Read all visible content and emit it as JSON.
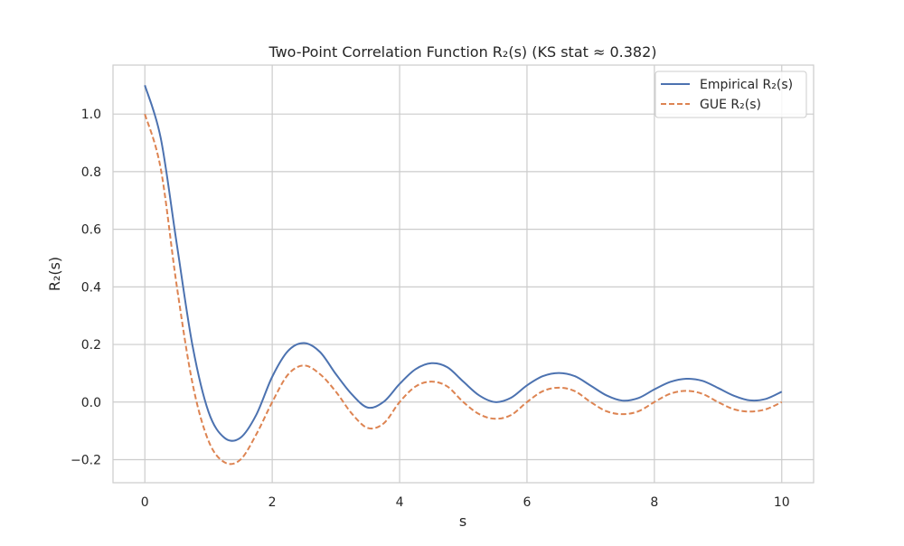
{
  "chart_data": {
    "type": "line",
    "title": "Two-Point Correlation Function R₂(s) (KS stat ≈ 0.382)",
    "xlabel": "s",
    "ylabel": "R₂(s)",
    "xlim": [
      -0.5,
      10.5
    ],
    "ylim": [
      -0.28,
      1.17
    ],
    "xticks": [
      0,
      2,
      4,
      6,
      8,
      10
    ],
    "xtick_labels": [
      "0",
      "2",
      "4",
      "6",
      "8",
      "10"
    ],
    "yticks": [
      -0.2,
      0.0,
      0.2,
      0.4,
      0.6,
      0.8,
      1.0
    ],
    "ytick_labels": [
      "−0.2",
      "0.0",
      "0.2",
      "0.4",
      "0.6",
      "0.8",
      "1.0"
    ],
    "grid": true,
    "legend_position": "top-right",
    "x": [
      0,
      0.25,
      0.5,
      0.75,
      1,
      1.25,
      1.5,
      1.75,
      2,
      2.25,
      2.5,
      2.75,
      3,
      3.25,
      3.5,
      3.75,
      4,
      4.25,
      4.5,
      4.75,
      5,
      5.25,
      5.5,
      5.75,
      6,
      6.25,
      6.5,
      6.75,
      7,
      7.25,
      7.5,
      7.75,
      8,
      8.25,
      8.5,
      8.75,
      9,
      9.25,
      9.5,
      9.75,
      10
    ],
    "series": [
      {
        "name": "Empirical R₂(s)",
        "color": "#4c72b0",
        "style": "solid",
        "values": [
          1.1,
          0.916,
          0.551,
          0.194,
          -0.034,
          -0.124,
          -0.124,
          -0.044,
          0.088,
          0.178,
          0.205,
          0.174,
          0.097,
          0.027,
          -0.019,
          0.001,
          0.063,
          0.114,
          0.135,
          0.121,
          0.071,
          0.023,
          0.0,
          0.015,
          0.058,
          0.09,
          0.101,
          0.09,
          0.057,
          0.023,
          0.005,
          0.014,
          0.044,
          0.07,
          0.081,
          0.074,
          0.049,
          0.022,
          0.006,
          0.011,
          0.036
        ]
      },
      {
        "name": "GUE R₂(s)",
        "color": "#dd8452",
        "style": "dashed",
        "values": [
          1.0,
          0.81,
          0.405,
          0.063,
          -0.135,
          -0.209,
          -0.2,
          -0.112,
          0.0,
          0.096,
          0.127,
          0.097,
          0.036,
          -0.04,
          -0.09,
          -0.074,
          0.0,
          0.054,
          0.071,
          0.054,
          0.0,
          -0.042,
          -0.058,
          -0.045,
          0.0,
          0.038,
          0.05,
          0.038,
          0.0,
          -0.032,
          -0.042,
          -0.032,
          0.0,
          0.029,
          0.039,
          0.029,
          0.0,
          -0.025,
          -0.033,
          -0.025,
          0.0
        ]
      }
    ]
  }
}
